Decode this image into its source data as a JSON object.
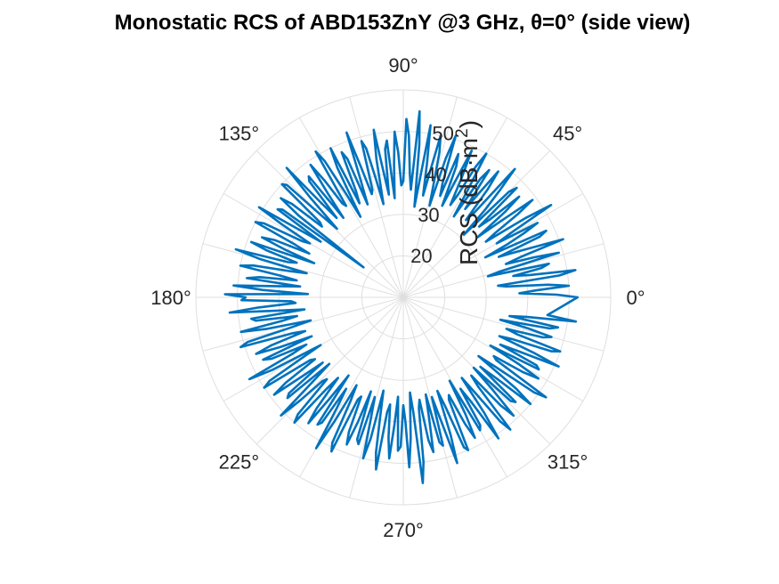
{
  "chart_data": {
    "type": "polar-line",
    "title": "Monostatic RCS of ABD153ZnY @3 GHz, θ=0° (side view)",
    "ylabel": "RCS (dB·m²)",
    "ylabel_parts": {
      "main": "RCS (dB·m",
      "sup": "2",
      "close": ")"
    },
    "r_ticks": [
      20,
      30,
      40,
      50
    ],
    "r_tick_labels": [
      "20",
      "30",
      "40",
      "50"
    ],
    "r_lim": [
      10,
      60
    ],
    "theta_ticks_deg": [
      0,
      45,
      90,
      135,
      180,
      225,
      270,
      315
    ],
    "theta_tick_labels": [
      "0°",
      "45°",
      "90°",
      "135°",
      "180°",
      "225°",
      "270°",
      "315°"
    ],
    "grid": true,
    "series": [
      {
        "color": "#0072BD",
        "theta_step_deg": 1,
        "r": [
          52,
          47,
          38,
          42,
          50,
          45,
          35,
          33,
          48,
          52,
          41,
          37,
          44,
          46,
          31,
          34,
          49,
          43,
          36,
          40,
          51,
          44,
          39,
          35,
          46,
          48,
          32,
          38,
          43,
          47,
          36,
          41,
          52,
          45,
          34,
          37,
          44,
          49,
          40,
          33,
          42,
          47,
          38,
          35,
          48,
          46,
          31,
          39,
          45,
          51,
          37,
          34,
          43,
          48,
          41,
          36,
          47,
          44,
          33,
          40,
          50,
          46,
          38,
          35,
          42,
          49,
          40,
          34,
          44,
          47,
          36,
          39,
          51,
          45,
          33,
          38,
          46,
          50,
          41,
          35,
          43,
          52,
          39,
          32,
          47,
          55,
          36,
          40,
          49,
          53,
          38,
          37,
          45,
          50,
          42,
          34,
          48,
          46,
          35,
          41,
          51,
          44,
          33,
          39,
          47,
          49,
          37,
          36,
          43,
          52,
          40,
          34,
          46,
          48,
          38,
          35,
          50,
          45,
          32,
          39,
          48,
          51,
          36,
          37,
          44,
          49,
          41,
          34,
          47,
          46,
          35,
          40,
          52,
          43,
          33,
          38,
          49,
          50,
          37,
          36,
          45,
          48,
          42,
          22,
          46,
          47,
          34,
          40,
          51,
          44,
          36,
          38,
          48,
          50,
          39,
          35,
          44,
          47,
          41,
          33,
          49,
          45,
          37,
          39,
          52,
          46,
          34,
          38,
          47,
          50,
          40,
          36,
          45,
          48,
          35,
          41,
          51,
          44,
          33,
          53,
          48,
          49,
          37,
          36,
          45,
          52,
          41,
          34,
          47,
          46,
          36,
          40,
          50,
          44,
          33,
          38,
          49,
          51,
          38,
          35,
          44,
          48,
          42,
          34,
          47,
          45,
          36,
          40,
          52,
          46,
          33,
          39,
          48,
          50,
          37,
          36,
          45,
          49,
          41,
          35,
          46,
          47,
          34,
          40,
          51,
          45,
          38,
          37,
          48,
          50,
          39,
          35,
          44,
          48,
          40,
          33,
          47,
          46,
          36,
          41,
          52,
          44,
          34,
          38,
          49,
          51,
          37,
          36,
          45,
          48,
          42,
          34,
          46,
          47,
          35,
          40,
          50,
          45,
          33,
          39,
          48,
          52,
          38,
          36,
          44,
          49,
          41,
          34,
          47,
          46,
          36,
          40,
          51,
          44,
          33,
          38,
          55,
          50,
          37,
          35,
          45,
          48,
          40,
          34,
          46,
          47,
          35,
          41,
          52,
          45,
          34,
          38,
          49,
          50,
          37,
          36,
          44,
          48,
          42,
          33,
          47,
          46,
          36,
          40,
          51,
          44,
          34,
          39,
          48,
          51,
          38,
          35,
          45,
          49,
          41,
          34,
          46,
          47,
          35,
          40,
          50,
          45,
          33,
          38,
          49,
          52,
          37,
          36,
          44,
          48,
          42,
          34,
          47,
          46,
          36,
          41,
          51,
          44,
          35,
          38,
          48,
          50,
          39,
          36,
          45,
          47,
          41,
          34,
          46,
          48,
          36,
          40,
          52,
          45
        ]
      }
    ]
  }
}
